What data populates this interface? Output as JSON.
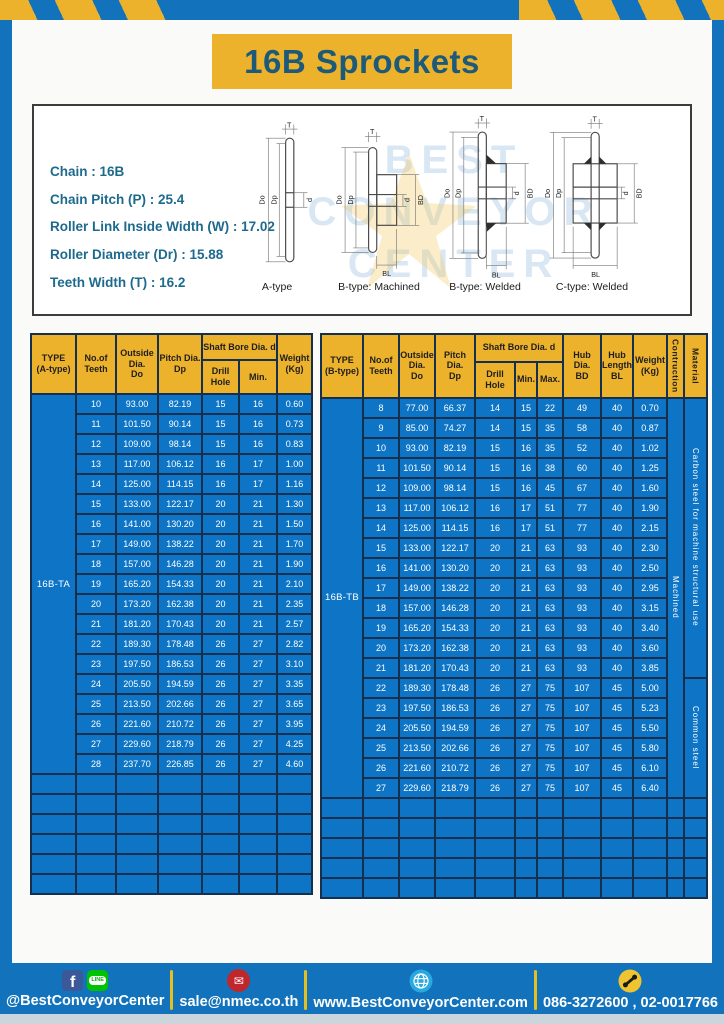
{
  "title": "16B Sprockets",
  "specs": {
    "lines": [
      "Chain  :  16B",
      "Chain Pitch (P)  :  25.4",
      "Roller Link Inside Width (W)  :  17.02",
      "Roller Diameter (Dr)  : 15.88",
      "Teeth Width (T)  :  16.2"
    ]
  },
  "watermark": {
    "lines": [
      "BEST",
      "CONVEYOR",
      "CENTER"
    ]
  },
  "diagrams": {
    "dims": {
      "T": "T",
      "Do": "Do",
      "Dp": "Dp",
      "d": "d",
      "BD": "BD",
      "BL": "BL"
    },
    "captions": [
      "A-type",
      "B-type: Machined",
      "B-type: Welded",
      "C-type: Welded"
    ]
  },
  "table_a": {
    "headers": {
      "type": "TYPE\n(A-type)",
      "teeth": "No.of\nTeeth",
      "outside": "Outside\nDia.\nDo",
      "pitch": "Pitch Dia.\nDp",
      "shaft_bore": "Shaft Bore Dia. d",
      "drill_hole": "Drill Hole",
      "min": "Min.",
      "weight": "Weight\n(Kg)"
    },
    "type_label": "16B-TA",
    "rows": [
      [
        "10",
        "93.00",
        "82.19",
        "15",
        "16",
        "0.60"
      ],
      [
        "11",
        "101.50",
        "90.14",
        "15",
        "16",
        "0.73"
      ],
      [
        "12",
        "109.00",
        "98.14",
        "15",
        "16",
        "0.83"
      ],
      [
        "13",
        "117.00",
        "106.12",
        "16",
        "17",
        "1.00"
      ],
      [
        "14",
        "125.00",
        "114.15",
        "16",
        "17",
        "1.16"
      ],
      [
        "15",
        "133.00",
        "122.17",
        "20",
        "21",
        "1.30"
      ],
      [
        "16",
        "141.00",
        "130.20",
        "20",
        "21",
        "1.50"
      ],
      [
        "17",
        "149.00",
        "138.22",
        "20",
        "21",
        "1.70"
      ],
      [
        "18",
        "157.00",
        "146.28",
        "20",
        "21",
        "1.90"
      ],
      [
        "19",
        "165.20",
        "154.33",
        "20",
        "21",
        "2.10"
      ],
      [
        "20",
        "173.20",
        "162.38",
        "20",
        "21",
        "2.35"
      ],
      [
        "21",
        "181.20",
        "170.43",
        "20",
        "21",
        "2.57"
      ],
      [
        "22",
        "189.30",
        "178.48",
        "26",
        "27",
        "2.82"
      ],
      [
        "23",
        "197.50",
        "186.53",
        "26",
        "27",
        "3.10"
      ],
      [
        "24",
        "205.50",
        "194.59",
        "26",
        "27",
        "3.35"
      ],
      [
        "25",
        "213.50",
        "202.66",
        "26",
        "27",
        "3.65"
      ],
      [
        "26",
        "221.60",
        "210.72",
        "26",
        "27",
        "3.95"
      ],
      [
        "27",
        "229.60",
        "218.79",
        "26",
        "27",
        "4.25"
      ],
      [
        "28",
        "237.70",
        "226.85",
        "26",
        "27",
        "4.60"
      ]
    ],
    "empty_row_count": 6
  },
  "table_b": {
    "headers": {
      "type": "TYPE\n(B-type)",
      "teeth": "No.of\nTeeth",
      "outside": "Outside\nDia.\nDo",
      "pitch": "Pitch Dia.\nDp",
      "shaft_bore": "Shaft Bore Dia. d",
      "drill_hole": "Drill Hole",
      "min": "Min.",
      "max": "Max.",
      "hub_dia": "Hub Dia.\nBD",
      "hub_length": "Hub\nLength\nBL",
      "weight": "Weight\n(Kg)",
      "construction": "Contruction",
      "material": "Material"
    },
    "type_label": "16B-TB",
    "construction": "Machined",
    "materials": [
      {
        "label": "Carbon steel for machine structural use",
        "row_span": 14
      },
      {
        "label": "Common steel",
        "row_span": 6
      }
    ],
    "rows": [
      [
        "8",
        "77.00",
        "66.37",
        "14",
        "15",
        "22",
        "49",
        "40",
        "0.70"
      ],
      [
        "9",
        "85.00",
        "74.27",
        "14",
        "15",
        "35",
        "58",
        "40",
        "0.87"
      ],
      [
        "10",
        "93.00",
        "82.19",
        "15",
        "16",
        "35",
        "52",
        "40",
        "1.02"
      ],
      [
        "11",
        "101.50",
        "90.14",
        "15",
        "16",
        "38",
        "60",
        "40",
        "1.25"
      ],
      [
        "12",
        "109.00",
        "98.14",
        "15",
        "16",
        "45",
        "67",
        "40",
        "1.60"
      ],
      [
        "13",
        "117.00",
        "106.12",
        "16",
        "17",
        "51",
        "77",
        "40",
        "1.90"
      ],
      [
        "14",
        "125.00",
        "114.15",
        "16",
        "17",
        "51",
        "77",
        "40",
        "2.15"
      ],
      [
        "15",
        "133.00",
        "122.17",
        "20",
        "21",
        "63",
        "93",
        "40",
        "2.30"
      ],
      [
        "16",
        "141.00",
        "130.20",
        "20",
        "21",
        "63",
        "93",
        "40",
        "2.50"
      ],
      [
        "17",
        "149.00",
        "138.22",
        "20",
        "21",
        "63",
        "93",
        "40",
        "2.95"
      ],
      [
        "18",
        "157.00",
        "146.28",
        "20",
        "21",
        "63",
        "93",
        "40",
        "3.15"
      ],
      [
        "19",
        "165.20",
        "154.33",
        "20",
        "21",
        "63",
        "93",
        "40",
        "3.40"
      ],
      [
        "20",
        "173.20",
        "162.38",
        "20",
        "21",
        "63",
        "93",
        "40",
        "3.60"
      ],
      [
        "21",
        "181.20",
        "170.43",
        "20",
        "21",
        "63",
        "93",
        "40",
        "3.85"
      ],
      [
        "22",
        "189.30",
        "178.48",
        "26",
        "27",
        "75",
        "107",
        "45",
        "5.00"
      ],
      [
        "23",
        "197.50",
        "186.53",
        "26",
        "27",
        "75",
        "107",
        "45",
        "5.23"
      ],
      [
        "24",
        "205.50",
        "194.59",
        "26",
        "27",
        "75",
        "107",
        "45",
        "5.50"
      ],
      [
        "25",
        "213.50",
        "202.66",
        "26",
        "27",
        "75",
        "107",
        "45",
        "5.80"
      ],
      [
        "26",
        "221.60",
        "210.72",
        "26",
        "27",
        "75",
        "107",
        "45",
        "6.10"
      ],
      [
        "27",
        "229.60",
        "218.79",
        "26",
        "27",
        "75",
        "107",
        "45",
        "6.40"
      ]
    ],
    "empty_row_count": 5
  },
  "footer": {
    "facebook_glyph": "f",
    "line_glyph": "LINE",
    "mail_glyph": "✉",
    "items": [
      {
        "label": "@BestConveyorCenter"
      },
      {
        "label": "sale@nmec.co.th"
      },
      {
        "label": "www.BestConveyorCenter.com"
      },
      {
        "label": "086-3272600 , 02-0017766"
      }
    ]
  },
  "colors": {
    "brand_blue": "#1273bc",
    "table_blue": "#0e75c6",
    "brand_yellow": "#edb22c",
    "grid_line": "#15304e",
    "title_text": "#1d5a7a",
    "spec_text": "#1d6a8d",
    "facebook": "#3b5998",
    "line_green": "#00c300",
    "mail_red": "#c0272d",
    "globe_cyan": "#29a9e1",
    "phone_yellow": "#f0c330"
  }
}
